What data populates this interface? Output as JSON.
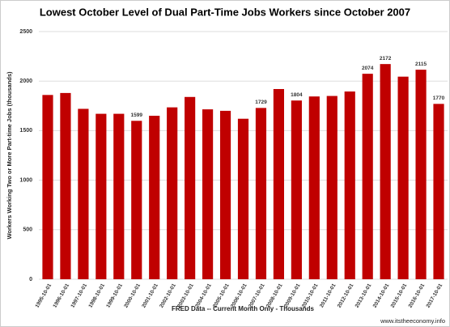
{
  "chart_data": {
    "type": "bar",
    "title": "Lowest October Level of Dual Part-Time Jobs Workers since October 2007",
    "y_label": "Workers Working Two or More Part-time Jobs (thousands)",
    "x_label": "FRED Data -- Current Month Only - Thousands",
    "source": "www.itstheeconomy.info",
    "categories": [
      "1995-10-01",
      "1996-10-01",
      "1997-10-01",
      "1998-10-01",
      "1999-10-01",
      "2000-10-01",
      "2001-10-01",
      "2002-10-01",
      "2003-10-01",
      "2004-10-01",
      "2005-10-01",
      "2006-10-01",
      "2007-10-01",
      "2008-10-01",
      "2009-10-01",
      "2010-10-01",
      "2011-10-01",
      "2012-10-01",
      "2013-10-01",
      "2014-10-01",
      "2015-10-01",
      "2016-10-01",
      "2017-10-01"
    ],
    "values": [
      1860,
      1880,
      1720,
      1670,
      1670,
      1599,
      1650,
      1735,
      1840,
      1715,
      1700,
      1620,
      1729,
      1920,
      1804,
      1845,
      1850,
      1895,
      2074,
      2172,
      2045,
      2115,
      1770
    ],
    "value_labels": [
      null,
      null,
      null,
      null,
      null,
      "1599",
      null,
      null,
      null,
      null,
      null,
      null,
      "1729",
      null,
      "1804",
      null,
      null,
      null,
      "2074",
      "2172",
      null,
      "2115",
      "1770"
    ],
    "color": "#c00000",
    "ylim": [
      0,
      2500
    ],
    "yticks": [
      0,
      500,
      1000,
      1500,
      2000,
      2500
    ],
    "grid": true
  }
}
